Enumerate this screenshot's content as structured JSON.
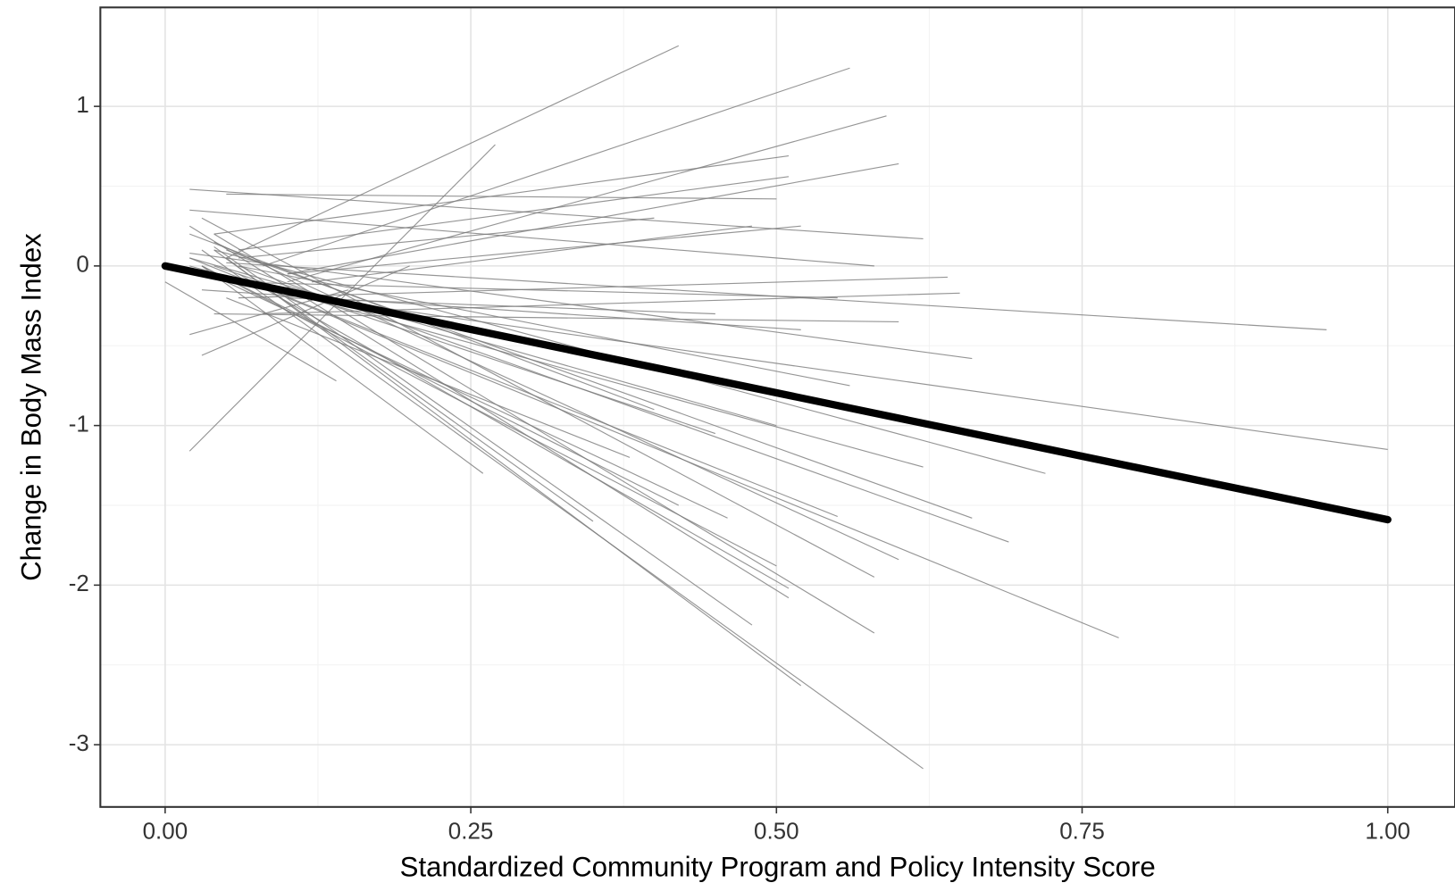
{
  "chart_data": {
    "type": "segments",
    "xlabel": "Standardized Community Program and Policy Intensity Score",
    "ylabel": "Change in Body Mass Index",
    "xlim": [
      -0.053,
      1.055
    ],
    "ylim": [
      -3.39,
      1.62
    ],
    "xticks": [
      {
        "value": 0,
        "label": "0.00"
      },
      {
        "value": 0.25,
        "label": "0.25"
      },
      {
        "value": 0.5,
        "label": "0.50"
      },
      {
        "value": 0.75,
        "label": "0.75"
      },
      {
        "value": 1,
        "label": "1.00"
      }
    ],
    "yticks": [
      -3,
      -2,
      -1,
      0,
      1
    ],
    "grid": true,
    "line_color": "#7a7a7a",
    "trend_color": "#000000",
    "lines": [
      {
        "x": [
          0.02,
          0.27
        ],
        "y": [
          -1.16,
          0.76
        ]
      },
      {
        "x": [
          0.05,
          0.42
        ],
        "y": [
          0.05,
          1.38
        ]
      },
      {
        "x": [
          0.08,
          0.56
        ],
        "y": [
          0.0,
          1.24
        ]
      },
      {
        "x": [
          0.1,
          0.59
        ],
        "y": [
          -0.1,
          0.94
        ]
      },
      {
        "x": [
          0.1,
          0.6
        ],
        "y": [
          -0.05,
          0.64
        ]
      },
      {
        "x": [
          0.02,
          0.62
        ],
        "y": [
          0.48,
          0.17
        ]
      },
      {
        "x": [
          0.05,
          0.5
        ],
        "y": [
          0.45,
          0.42
        ]
      },
      {
        "x": [
          0.06,
          0.51
        ],
        "y": [
          0.1,
          0.56
        ]
      },
      {
        "x": [
          0.04,
          0.51
        ],
        "y": [
          0.2,
          0.69
        ]
      },
      {
        "x": [
          0.05,
          0.95
        ],
        "y": [
          0.02,
          -0.4
        ]
      },
      {
        "x": [
          0.12,
          1.0
        ],
        "y": [
          -0.2,
          -1.15
        ]
      },
      {
        "x": [
          0.03,
          0.62
        ],
        "y": [
          0.1,
          -3.15
        ]
      },
      {
        "x": [
          0.05,
          0.52
        ],
        "y": [
          0.05,
          -2.63
        ]
      },
      {
        "x": [
          0.04,
          0.58
        ],
        "y": [
          0.2,
          -2.3
        ]
      },
      {
        "x": [
          0.1,
          0.78
        ],
        "y": [
          -0.2,
          -2.33
        ]
      },
      {
        "x": [
          0.06,
          0.69
        ],
        "y": [
          0.0,
          -1.73
        ]
      },
      {
        "x": [
          0.05,
          0.66
        ],
        "y": [
          0.1,
          -1.58
        ]
      },
      {
        "x": [
          0.04,
          0.6
        ],
        "y": [
          0.15,
          -1.84
        ]
      },
      {
        "x": [
          0.03,
          0.58
        ],
        "y": [
          0.3,
          -1.95
        ]
      },
      {
        "x": [
          0.02,
          0.51
        ],
        "y": [
          0.25,
          -2.08
        ]
      },
      {
        "x": [
          0.06,
          0.51
        ],
        "y": [
          -0.05,
          -2.02
        ]
      },
      {
        "x": [
          0.04,
          0.48
        ],
        "y": [
          0.12,
          -2.25
        ]
      },
      {
        "x": [
          0.03,
          0.5
        ],
        "y": [
          0.0,
          -1.88
        ]
      },
      {
        "x": [
          0.02,
          0.55
        ],
        "y": [
          0.05,
          -1.57
        ]
      },
      {
        "x": [
          0.02,
          0.62
        ],
        "y": [
          0.0,
          -1.26
        ]
      },
      {
        "x": [
          0.05,
          0.46
        ],
        "y": [
          -0.1,
          -1.58
        ]
      },
      {
        "x": [
          0.03,
          0.42
        ],
        "y": [
          0.0,
          -1.5
        ]
      },
      {
        "x": [
          0.04,
          0.35
        ],
        "y": [
          0.1,
          -1.6
        ]
      },
      {
        "x": [
          0.03,
          0.26
        ],
        "y": [
          0.0,
          -1.3
        ]
      },
      {
        "x": [
          0.0,
          0.14
        ],
        "y": [
          -0.1,
          -0.72
        ]
      },
      {
        "x": [
          0.02,
          0.66
        ],
        "y": [
          0.08,
          -0.58
        ]
      },
      {
        "x": [
          0.08,
          0.65
        ],
        "y": [
          -0.3,
          -0.17
        ]
      },
      {
        "x": [
          0.06,
          0.64
        ],
        "y": [
          -0.2,
          -0.07
        ]
      },
      {
        "x": [
          0.04,
          0.6
        ],
        "y": [
          -0.3,
          -0.35
        ]
      },
      {
        "x": [
          0.05,
          0.55
        ],
        "y": [
          -0.1,
          -0.2
        ]
      },
      {
        "x": [
          0.03,
          0.52
        ],
        "y": [
          -0.15,
          -0.4
        ]
      },
      {
        "x": [
          0.1,
          0.45
        ],
        "y": [
          -0.2,
          -0.3
        ]
      },
      {
        "x": [
          0.02,
          0.5
        ],
        "y": [
          0.05,
          -1.0
        ]
      },
      {
        "x": [
          0.04,
          0.45
        ],
        "y": [
          0.0,
          -1.05
        ]
      },
      {
        "x": [
          0.06,
          0.56
        ],
        "y": [
          0.0,
          -0.75
        ]
      },
      {
        "x": [
          0.1,
          0.52
        ],
        "y": [
          -0.05,
          0.25
        ]
      },
      {
        "x": [
          0.12,
          0.48
        ],
        "y": [
          -0.1,
          0.25
        ]
      },
      {
        "x": [
          0.06,
          0.4
        ],
        "y": [
          0.05,
          0.3
        ]
      },
      {
        "x": [
          0.02,
          0.58
        ],
        "y": [
          0.35,
          0.0
        ]
      },
      {
        "x": [
          0.03,
          0.2
        ],
        "y": [
          -0.56,
          0.0
        ]
      },
      {
        "x": [
          0.02,
          0.15
        ],
        "y": [
          -0.43,
          -0.15
        ]
      },
      {
        "x": [
          0.04,
          0.72
        ],
        "y": [
          0.1,
          -1.3
        ]
      },
      {
        "x": [
          0.02,
          0.4
        ],
        "y": [
          0.2,
          -0.9
        ]
      },
      {
        "x": [
          0.05,
          0.38
        ],
        "y": [
          -0.2,
          -1.2
        ]
      }
    ],
    "trend": {
      "x": [
        0,
        1
      ],
      "y": [
        0,
        -1.59
      ]
    }
  }
}
